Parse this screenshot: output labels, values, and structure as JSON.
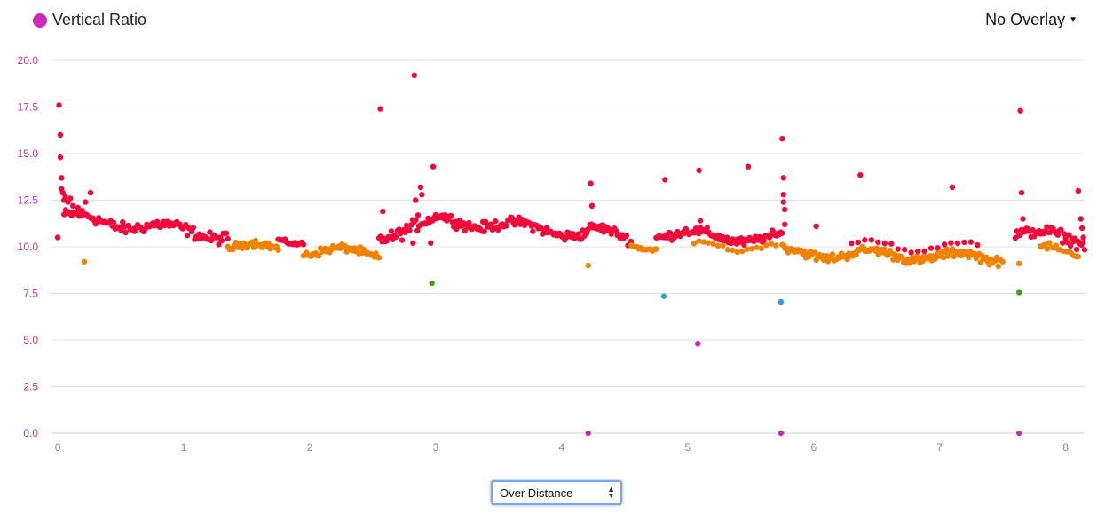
{
  "header": {
    "series_label": "Vertical Ratio",
    "series_color": "#cc2ab8",
    "overlay_label": "No Overlay"
  },
  "controls": {
    "x_mode": "Over Distance"
  },
  "colors": {
    "red": "#f0093a",
    "orange": "#f08200",
    "green": "#3fa11e",
    "blue": "#2a9fd8",
    "magenta": "#cc2ab8",
    "tick_label": "#cc2ab8",
    "grid": "#e3e3e3"
  },
  "chart_data": {
    "type": "scatter",
    "title": "Vertical Ratio",
    "xlabel": "",
    "ylabel": "",
    "xlim": [
      -0.05,
      8.15
    ],
    "ylim": [
      0,
      20
    ],
    "yticks": [
      "0.0",
      "2.5",
      "5.0",
      "7.5",
      "10.0",
      "12.5",
      "15.0",
      "17.5",
      "20.0"
    ],
    "xticks": [
      "0",
      "1",
      "2",
      "3",
      "4",
      "5",
      "6",
      "7",
      "8"
    ],
    "grid": true,
    "segments": [
      {
        "x0": 0.05,
        "x1": 1.35,
        "y0": 11.6,
        "y1": 10.6,
        "color": "red",
        "n": 110,
        "noise": 0.45
      },
      {
        "x0": 1.35,
        "x1": 1.75,
        "y0": 10.0,
        "y1": 9.9,
        "color": "orange",
        "n": 32,
        "noise": 0.3
      },
      {
        "x0": 1.75,
        "x1": 1.95,
        "y0": 10.4,
        "y1": 10.4,
        "color": "red",
        "n": 16,
        "noise": 0.15
      },
      {
        "x0": 1.95,
        "x1": 2.55,
        "y0": 9.8,
        "y1": 9.6,
        "color": "orange",
        "n": 50,
        "noise": 0.3
      },
      {
        "x0": 2.55,
        "x1": 3.0,
        "y0": 10.6,
        "y1": 11.3,
        "color": "red",
        "n": 38,
        "noise": 0.5
      },
      {
        "x0": 3.0,
        "x1": 4.2,
        "y0": 11.5,
        "y1": 10.7,
        "color": "red",
        "n": 110,
        "noise": 0.4
      },
      {
        "x0": 4.2,
        "x1": 4.55,
        "y0": 11.0,
        "y1": 10.3,
        "color": "red",
        "n": 30,
        "noise": 0.35
      },
      {
        "x0": 4.55,
        "x1": 4.75,
        "y0": 10.1,
        "y1": 10.1,
        "color": "orange",
        "n": 14,
        "noise": 0.15
      },
      {
        "x0": 4.75,
        "x1": 5.75,
        "y0": 10.7,
        "y1": 10.4,
        "color": "red",
        "n": 90,
        "noise": 0.35
      },
      {
        "x0": 5.05,
        "x1": 5.7,
        "y0": 10.1,
        "y1": 10.0,
        "color": "orange",
        "n": 18,
        "noise": 0.2
      },
      {
        "x0": 5.75,
        "x1": 7.5,
        "y0": 9.7,
        "y1": 9.4,
        "color": "orange",
        "n": 150,
        "noise": 0.35
      },
      {
        "x0": 6.3,
        "x1": 7.3,
        "y0": 10.1,
        "y1": 10.0,
        "color": "red",
        "n": 20,
        "noise": 0.2
      },
      {
        "x0": 7.6,
        "x1": 8.15,
        "y0": 10.8,
        "y1": 10.3,
        "color": "red",
        "n": 45,
        "noise": 0.45
      },
      {
        "x0": 7.8,
        "x1": 8.1,
        "y0": 9.8,
        "y1": 9.6,
        "color": "orange",
        "n": 18,
        "noise": 0.25
      }
    ],
    "points": [
      {
        "x": 0.0,
        "y": 10.5,
        "color": "red"
      },
      {
        "x": 0.01,
        "y": 17.6,
        "color": "red"
      },
      {
        "x": 0.02,
        "y": 16.0,
        "color": "red"
      },
      {
        "x": 0.02,
        "y": 14.8,
        "color": "red"
      },
      {
        "x": 0.03,
        "y": 13.7,
        "color": "red"
      },
      {
        "x": 0.03,
        "y": 13.1,
        "color": "red"
      },
      {
        "x": 0.04,
        "y": 12.9,
        "color": "red"
      },
      {
        "x": 0.05,
        "y": 12.5,
        "color": "red"
      },
      {
        "x": 0.06,
        "y": 12.7,
        "color": "red"
      },
      {
        "x": 0.08,
        "y": 12.4,
        "color": "red"
      },
      {
        "x": 0.1,
        "y": 12.6,
        "color": "red"
      },
      {
        "x": 0.12,
        "y": 12.2,
        "color": "red"
      },
      {
        "x": 0.16,
        "y": 12.1,
        "color": "red"
      },
      {
        "x": 0.22,
        "y": 12.4,
        "color": "red"
      },
      {
        "x": 0.26,
        "y": 12.9,
        "color": "red"
      },
      {
        "x": 0.21,
        "y": 9.2,
        "color": "orange"
      },
      {
        "x": 2.56,
        "y": 17.4,
        "color": "red"
      },
      {
        "x": 2.58,
        "y": 11.9,
        "color": "red"
      },
      {
        "x": 2.83,
        "y": 19.2,
        "color": "red"
      },
      {
        "x": 2.84,
        "y": 12.5,
        "color": "red"
      },
      {
        "x": 2.86,
        "y": 11.7,
        "color": "red"
      },
      {
        "x": 2.88,
        "y": 13.2,
        "color": "red"
      },
      {
        "x": 2.89,
        "y": 12.8,
        "color": "red"
      },
      {
        "x": 2.82,
        "y": 10.2,
        "color": "red"
      },
      {
        "x": 2.96,
        "y": 10.2,
        "color": "red"
      },
      {
        "x": 2.98,
        "y": 14.3,
        "color": "red"
      },
      {
        "x": 2.97,
        "y": 8.05,
        "color": "green"
      },
      {
        "x": 4.23,
        "y": 13.4,
        "color": "red"
      },
      {
        "x": 4.24,
        "y": 12.2,
        "color": "red"
      },
      {
        "x": 4.21,
        "y": 9.0,
        "color": "orange"
      },
      {
        "x": 4.21,
        "y": 0.0,
        "color": "magenta"
      },
      {
        "x": 4.82,
        "y": 13.6,
        "color": "red"
      },
      {
        "x": 4.81,
        "y": 7.35,
        "color": "blue"
      },
      {
        "x": 5.09,
        "y": 14.1,
        "color": "red"
      },
      {
        "x": 5.1,
        "y": 11.4,
        "color": "red"
      },
      {
        "x": 5.08,
        "y": 4.8,
        "color": "magenta"
      },
      {
        "x": 5.48,
        "y": 14.3,
        "color": "red"
      },
      {
        "x": 5.75,
        "y": 15.8,
        "color": "red"
      },
      {
        "x": 5.76,
        "y": 13.7,
        "color": "red"
      },
      {
        "x": 5.76,
        "y": 12.8,
        "color": "red"
      },
      {
        "x": 5.76,
        "y": 12.4,
        "color": "red"
      },
      {
        "x": 5.77,
        "y": 12.0,
        "color": "red"
      },
      {
        "x": 5.77,
        "y": 11.2,
        "color": "red"
      },
      {
        "x": 5.74,
        "y": 7.05,
        "color": "blue"
      },
      {
        "x": 5.74,
        "y": 0.0,
        "color": "magenta"
      },
      {
        "x": 6.02,
        "y": 11.1,
        "color": "red"
      },
      {
        "x": 6.37,
        "y": 13.85,
        "color": "red"
      },
      {
        "x": 7.1,
        "y": 13.2,
        "color": "red"
      },
      {
        "x": 7.64,
        "y": 17.3,
        "color": "red"
      },
      {
        "x": 7.65,
        "y": 12.9,
        "color": "red"
      },
      {
        "x": 7.66,
        "y": 11.5,
        "color": "red"
      },
      {
        "x": 7.63,
        "y": 9.1,
        "color": "orange"
      },
      {
        "x": 7.63,
        "y": 7.55,
        "color": "green"
      },
      {
        "x": 7.63,
        "y": 0.0,
        "color": "magenta"
      },
      {
        "x": 8.1,
        "y": 13.0,
        "color": "red"
      },
      {
        "x": 8.12,
        "y": 11.5,
        "color": "red"
      },
      {
        "x": 8.13,
        "y": 11.0,
        "color": "red"
      },
      {
        "x": 8.14,
        "y": 10.5,
        "color": "red"
      }
    ]
  }
}
